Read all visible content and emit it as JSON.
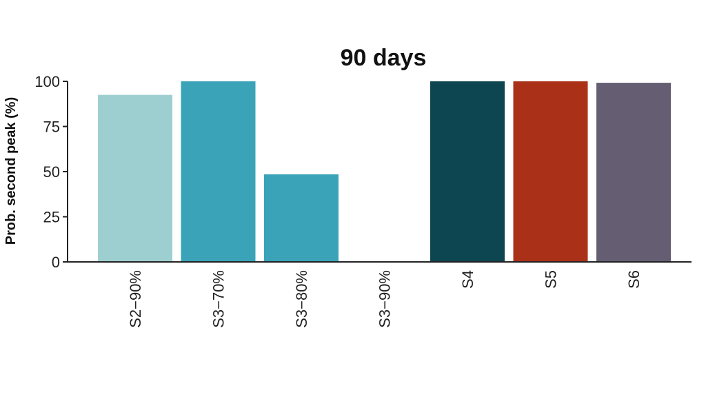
{
  "chart_data": {
    "type": "bar",
    "title": "90 days",
    "xlabel": "",
    "ylabel": "Prob. second peak (%)",
    "ylim": [
      0,
      100
    ],
    "yticks": [
      0,
      25,
      50,
      75,
      100
    ],
    "ytick_labels": [
      "0",
      "25",
      "50",
      "75",
      "100"
    ],
    "categories": [
      "S2−90%",
      "S3−70%",
      "S3−80%",
      "S3−90%",
      "S4",
      "S5",
      "S6"
    ],
    "values": [
      92.5,
      100,
      48.5,
      0,
      100,
      100,
      99.2
    ],
    "colors": [
      "#9ecfd0",
      "#3aa3b8",
      "#3aa3b8",
      "#3aa3b8",
      "#0d4650",
      "#aa3018",
      "#655e72"
    ],
    "grid": false,
    "legend": "none"
  }
}
